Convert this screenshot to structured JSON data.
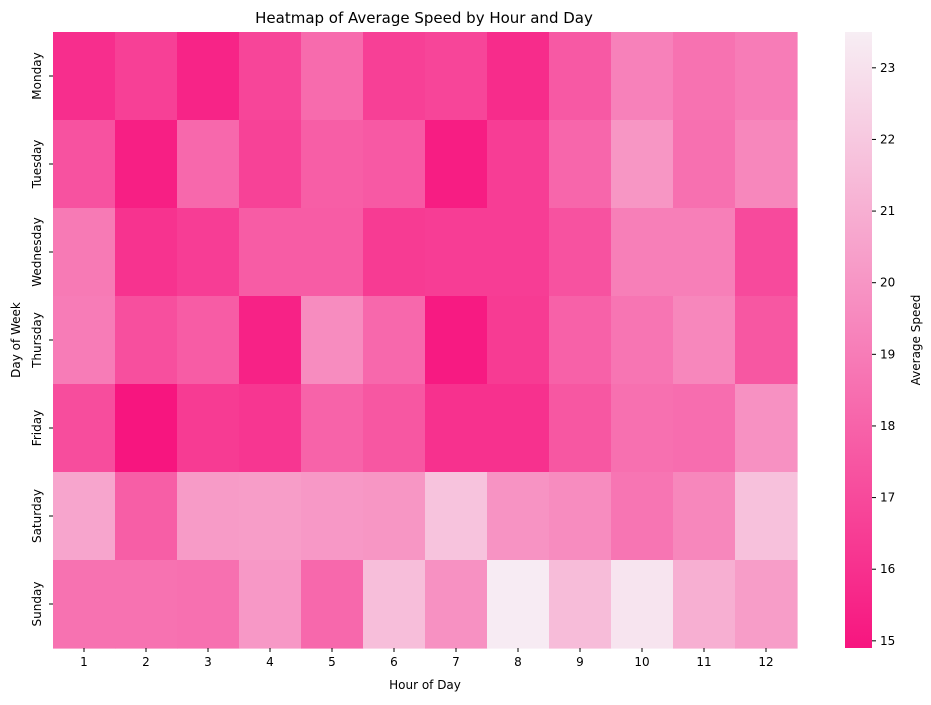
{
  "chart_data": {
    "type": "heatmap",
    "title": "Heatmap of Average Speed by Hour and Day",
    "xlabel": "Hour of Day",
    "ylabel": "Day of Week",
    "x": [
      "1",
      "2",
      "3",
      "4",
      "5",
      "6",
      "7",
      "8",
      "9",
      "10",
      "11",
      "12"
    ],
    "y": [
      "Monday",
      "Tuesday",
      "Wednesday",
      "Thursday",
      "Friday",
      "Saturday",
      "Sunday"
    ],
    "values": [
      [
        15.9,
        16.6,
        15.5,
        16.8,
        18.3,
        16.6,
        16.8,
        15.8,
        17.6,
        19.2,
        18.6,
        19.0
      ],
      [
        17.3,
        15.3,
        18.2,
        16.7,
        17.8,
        17.6,
        15.2,
        16.5,
        18.1,
        20.0,
        18.5,
        19.4
      ],
      [
        18.9,
        16.1,
        16.5,
        17.7,
        17.7,
        16.4,
        16.5,
        16.5,
        17.3,
        19.1,
        19.1,
        17.0
      ],
      [
        19.0,
        17.2,
        17.7,
        15.4,
        19.6,
        18.2,
        15.1,
        16.4,
        17.9,
        18.7,
        19.4,
        17.5
      ],
      [
        17.1,
        14.9,
        16.4,
        16.2,
        18.0,
        17.5,
        16.0,
        16.0,
        17.5,
        18.5,
        18.4,
        19.8
      ],
      [
        20.6,
        17.8,
        20.2,
        20.3,
        20.1,
        20.0,
        21.8,
        19.9,
        19.6,
        18.7,
        19.4,
        21.7
      ],
      [
        18.6,
        18.6,
        18.5,
        20.1,
        18.2,
        21.6,
        19.8,
        23.4,
        21.5,
        23.1,
        21.0,
        20.3
      ]
    ],
    "colorbar": {
      "label": "Average Speed",
      "range": [
        14.9,
        23.5
      ],
      "ticks": [
        15,
        16,
        17,
        18,
        19,
        20,
        21,
        22,
        23
      ],
      "color_low": "#f7157f",
      "color_high": "#f7eef4"
    },
    "grid": false
  }
}
